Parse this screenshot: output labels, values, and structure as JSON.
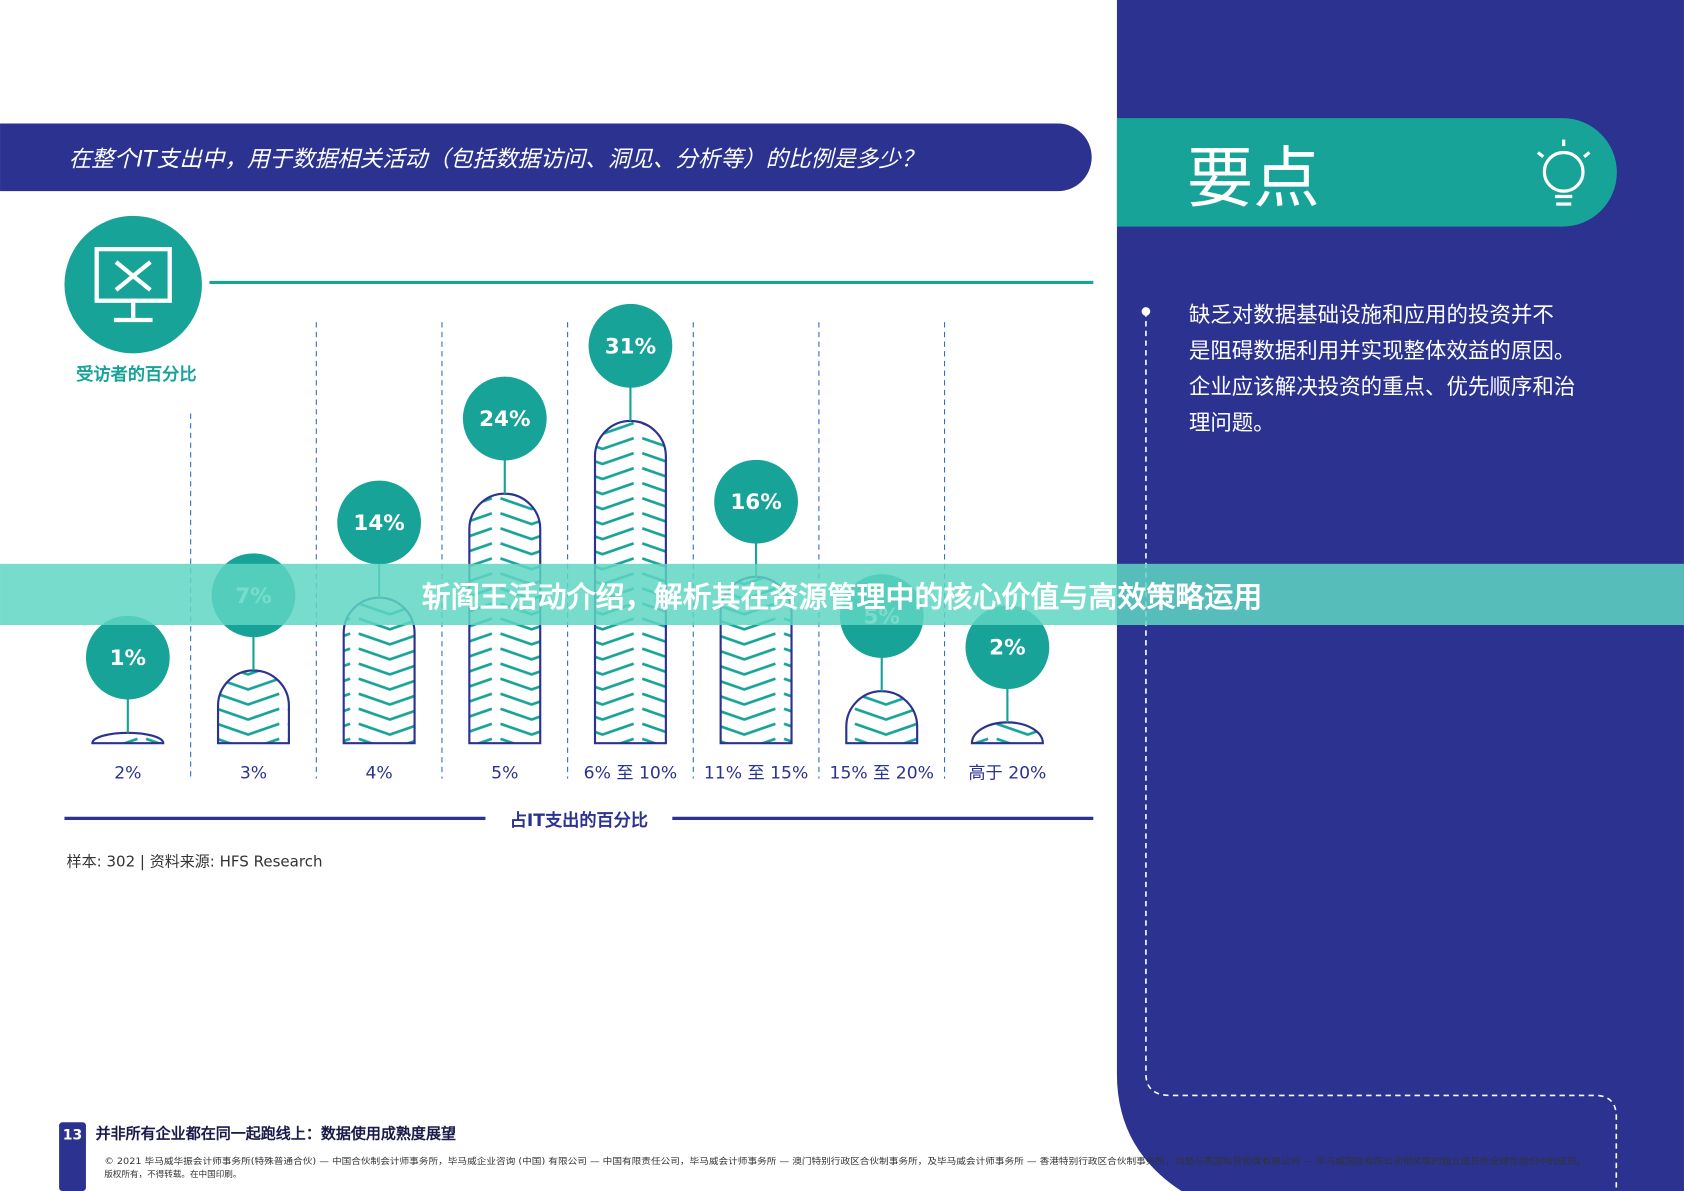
{
  "header": {
    "question": "在整个IT支出中，用于数据相关活动（包括数据访问、洞见、分析等）的比例是多少？"
  },
  "chart_data": {
    "type": "bar",
    "y_label": "受访者的百分比",
    "x_label": "占IT支出的百分比",
    "categories": [
      "2%",
      "3%",
      "4%",
      "5%",
      "6% 至 10%",
      "11% 至 15%",
      "15% 至 20%",
      "高于 20%"
    ],
    "values": [
      1,
      7,
      14,
      24,
      31,
      16,
      5,
      2
    ],
    "value_labels": [
      "1%",
      "7%",
      "14%",
      "24%",
      "31%",
      "16%",
      "5%",
      "2%"
    ],
    "color": "#17a398"
  },
  "note": "样本: 302 | 资料来源: HFS Research",
  "sidebar": {
    "title": "要点",
    "lines": [
      "缺乏对数据基础设施和应用的投资并不",
      "是阻碍数据利用并实现整体效益的原因。",
      "企业应该解决投资的重点、优先顺序和治",
      "理问题。"
    ]
  },
  "footer": {
    "page": "13",
    "title": "并非所有企业都在同一起跑线上：数据使用成熟度展望",
    "copyright": [
      "© 2021 毕马威华振会计师事务所(特殊普通合伙) — 中国合伙制会计师事务所，毕马威企业咨询 (中国) 有限公司 — 中国有限责任公司，毕马威会计师事务所 — 澳门特别行政区合伙制事务所，及毕马威会计师事务所 — 香港特别行政区合伙制事务所，均是与英国私营担保有限公司 — 毕马威国际有限公司相关联的独立成员所全球性组织中的成员。",
      "版权所有，不得转载。在中国印刷。"
    ]
  },
  "banner": "斩阎王活动介绍，解析其在资源管理中的核心价值与高效策略运用"
}
